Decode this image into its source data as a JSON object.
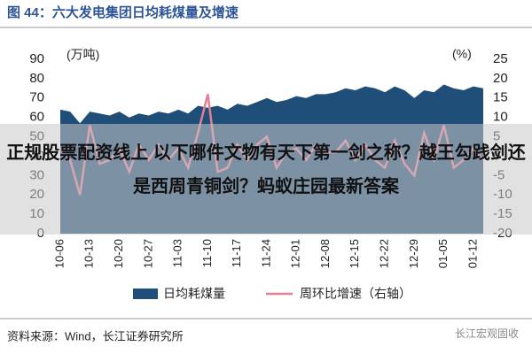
{
  "chart_data": {
    "type": "area-line",
    "title": "图 44：六大发电集团日均耗煤量及增速",
    "y_unit": "(万吨)",
    "y2_unit": "(%)",
    "categories": [
      "10-06",
      null,
      null,
      "10-13",
      null,
      null,
      "10-20",
      null,
      null,
      "10-27",
      null,
      null,
      "11-03",
      null,
      null,
      "11-10",
      null,
      null,
      "11-17",
      null,
      null,
      "11-24",
      null,
      null,
      "12-01",
      null,
      null,
      "12-08",
      null,
      null,
      "12-15",
      null,
      null,
      "12-22",
      null,
      null,
      "12-29",
      null,
      null,
      "01-05",
      null,
      null,
      "01-12",
      null
    ],
    "series": [
      {
        "name": "日均耗煤量",
        "color": "#1f4e79",
        "axis": "y",
        "values": [
          64,
          63,
          57,
          63,
          62,
          61,
          63,
          60,
          62,
          61,
          63,
          62,
          64,
          62,
          66,
          65,
          66,
          64,
          67,
          66,
          68,
          70,
          68,
          69,
          71,
          70,
          72,
          72,
          73,
          75,
          74,
          76,
          75,
          73,
          76,
          74,
          70,
          74,
          73,
          77,
          75,
          74,
          76,
          75
        ]
      },
      {
        "name": "周环比增速（右轴）",
        "color": "#e57f94",
        "axis": "y2",
        "values": [
          2,
          -1,
          -10,
          8,
          -2,
          -1,
          2,
          -4,
          3,
          -1,
          3,
          -1,
          2,
          -3,
          6,
          16,
          -4,
          -3,
          3,
          -1,
          3,
          5,
          -3,
          1,
          2,
          -1,
          3,
          1,
          1,
          4,
          -1,
          3,
          -1,
          -3,
          4,
          -2,
          -5,
          6,
          -1,
          8,
          -3,
          -1,
          2,
          -1
        ]
      }
    ],
    "ylim": [
      0,
      90
    ],
    "yticks": [
      0,
      10,
      20,
      30,
      40,
      50,
      60,
      70,
      80,
      90
    ],
    "y2lim": [
      -20,
      25
    ],
    "y2ticks": [
      -20,
      -15,
      -10,
      -5,
      0,
      5,
      10,
      15,
      20,
      25
    ]
  },
  "source": "资料来源：Wind，长江证券研究所",
  "watermark": "长江宏观固收",
  "overlay_text": "正规股票配资线上   以下哪件文物有天下第一剑之称？越王勾践剑还是西周青铜剑？蚂蚁庄园最新答案"
}
